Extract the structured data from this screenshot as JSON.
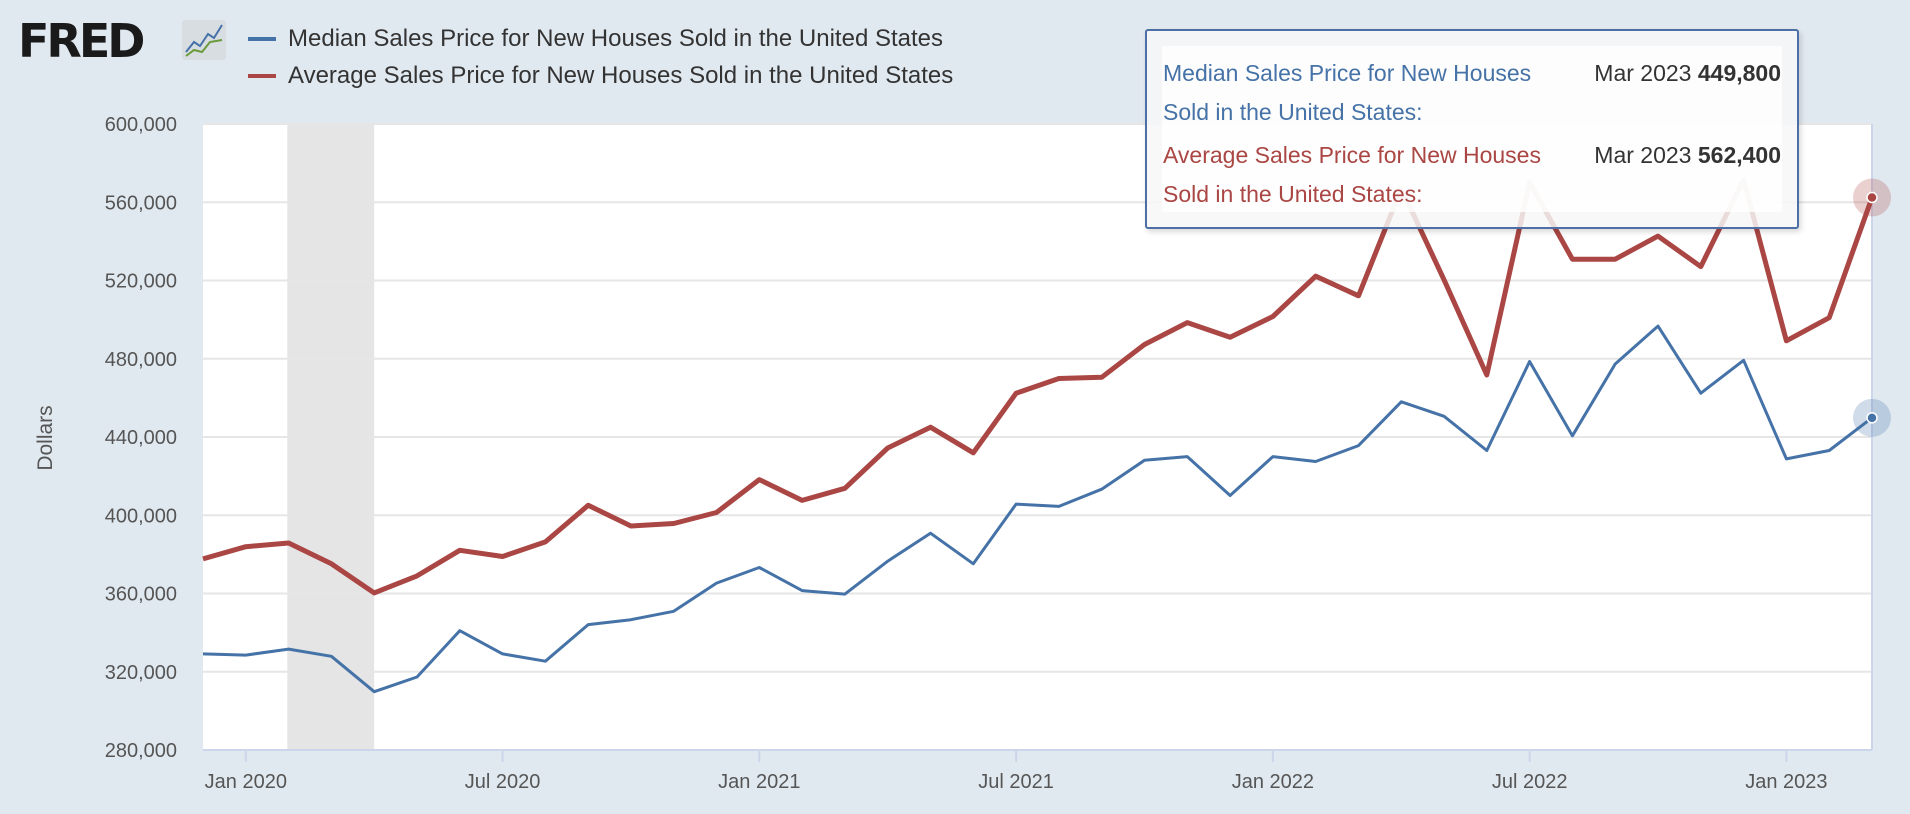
{
  "header": {
    "logo_text": "FRED",
    "legend": [
      {
        "label": "Median Sales Price for New Houses Sold in the United States",
        "color": "#4572a7"
      },
      {
        "label": "Average Sales Price for New Houses Sold in the United States",
        "color": "#aa4643"
      }
    ]
  },
  "tooltip": {
    "rows": [
      {
        "name": "Median Sales Price for New Houses Sold in the United States:",
        "date": "Mar 2023",
        "value": "449,800",
        "color": "#4572a7"
      },
      {
        "name": "Average Sales Price for New Houses Sold in the United States:",
        "date": "Mar 2023",
        "value": "562,400",
        "color": "#aa4643"
      }
    ]
  },
  "chart_data": {
    "type": "line",
    "ylabel": "Dollars",
    "xlabel": "",
    "ylim": [
      280000,
      600000
    ],
    "yticks": [
      "600,000",
      "560,000",
      "520,000",
      "480,000",
      "440,000",
      "400,000",
      "360,000",
      "320,000",
      "280,000"
    ],
    "ytick_values": [
      600000,
      560000,
      520000,
      480000,
      440000,
      400000,
      360000,
      320000,
      280000
    ],
    "xticks": [
      "Jan 2020",
      "Jul 2020",
      "Jan 2021",
      "Jul 2021",
      "Jan 2022",
      "Jul 2022",
      "Jan 2023"
    ],
    "xtick_dates": [
      "2020-01",
      "2020-07",
      "2021-01",
      "2021-07",
      "2022-01",
      "2022-07",
      "2023-01"
    ],
    "xlim": [
      "2019-12",
      "2023-03"
    ],
    "grid": true,
    "legend_position": "top",
    "recession_shading": [
      [
        "2020-02",
        "2020-04"
      ]
    ],
    "x": [
      "2019-12",
      "2020-01",
      "2020-02",
      "2020-03",
      "2020-04",
      "2020-05",
      "2020-06",
      "2020-07",
      "2020-08",
      "2020-09",
      "2020-10",
      "2020-11",
      "2020-12",
      "2021-01",
      "2021-02",
      "2021-03",
      "2021-04",
      "2021-05",
      "2021-06",
      "2021-07",
      "2021-08",
      "2021-09",
      "2021-10",
      "2021-11",
      "2021-12",
      "2022-01",
      "2022-02",
      "2022-03",
      "2022-04",
      "2022-05",
      "2022-06",
      "2022-07",
      "2022-08",
      "2022-09",
      "2022-10",
      "2022-11",
      "2022-12",
      "2023-01",
      "2023-02",
      "2023-03"
    ],
    "series": [
      {
        "name": "Median Sales Price for New Houses Sold in the United States",
        "color": "#4572a7",
        "values": [
          329100,
          328500,
          331600,
          327900,
          309800,
          317300,
          341000,
          329100,
          325400,
          344100,
          346600,
          350900,
          365300,
          373300,
          361500,
          359700,
          376500,
          390800,
          375200,
          405700,
          404500,
          413300,
          428100,
          430000,
          410100,
          430000,
          427500,
          435600,
          458000,
          450600,
          433100,
          478600,
          440600,
          477300,
          496700,
          462400,
          479200,
          428800,
          433100,
          449800
        ]
      },
      {
        "name": "Average Sales Price for New Houses Sold in the United States",
        "color": "#aa4643",
        "values": [
          377700,
          383900,
          385800,
          375200,
          360300,
          369000,
          382100,
          378900,
          386400,
          405100,
          394500,
          395800,
          401400,
          418200,
          407600,
          413800,
          434400,
          445000,
          431900,
          462400,
          469900,
          470500,
          487300,
          498500,
          491000,
          501600,
          522200,
          512200,
          567000,
          520300,
          471700,
          570100,
          530900,
          530900,
          542700,
          527100,
          571400,
          489200,
          501000,
          562400
        ]
      }
    ]
  }
}
